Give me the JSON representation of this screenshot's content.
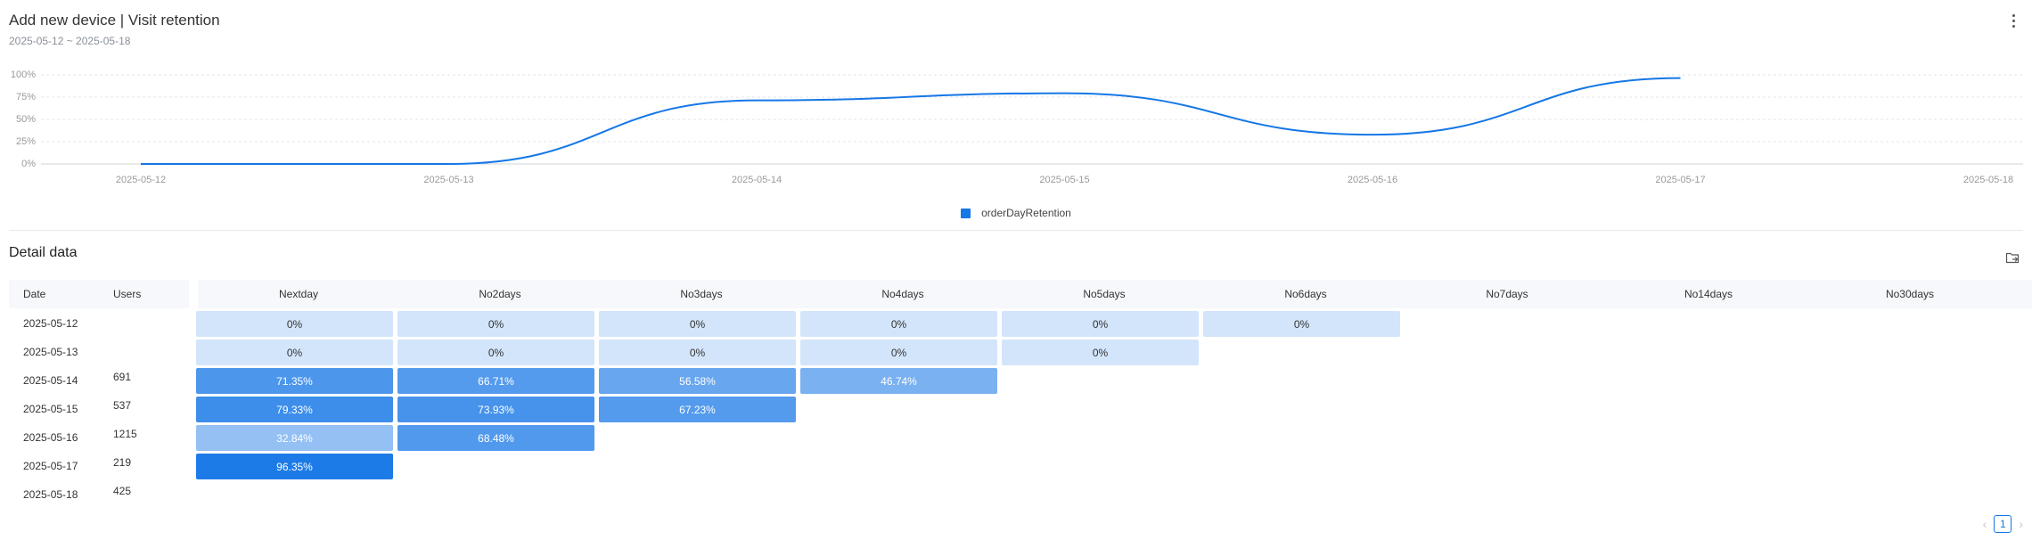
{
  "header": {
    "title": "Add new device | Visit retention",
    "date_range": "2025-05-12 ~ 2025-05-18"
  },
  "icons": {
    "more": "more-vertical-icon",
    "export": "export-folder-icon"
  },
  "colors": {
    "series": "#1677e6",
    "grid": "#e3e6ea",
    "axis": "#d0d4da"
  },
  "chart_data": {
    "type": "line",
    "x": [
      "2025-05-12",
      "2025-05-13",
      "2025-05-14",
      "2025-05-15",
      "2025-05-16",
      "2025-05-17",
      "2025-05-18"
    ],
    "series": [
      {
        "name": "orderDayRetention",
        "values": [
          0,
          0,
          71.35,
          79.33,
          32.84,
          96.35,
          null
        ]
      }
    ],
    "y_ticks": [
      "100%",
      "75%",
      "50%",
      "25%",
      "0%"
    ],
    "ylim": [
      0,
      100
    ],
    "grid": true,
    "smooth": true,
    "legend": "bottom-center"
  },
  "detail": {
    "title": "Detail data",
    "columns": {
      "date": "Date",
      "users": "Users",
      "periods": [
        "Nextday",
        "No2days",
        "No3days",
        "No4days",
        "No5days",
        "No6days",
        "No7days",
        "No14days",
        "No30days"
      ]
    },
    "rows": [
      {
        "date": "2025-05-12",
        "users": "",
        "values": [
          "0%",
          "0%",
          "0%",
          "0%",
          "0%",
          "0%"
        ],
        "numeric": [
          0,
          0,
          0,
          0,
          0,
          0
        ]
      },
      {
        "date": "2025-05-13",
        "users": "",
        "values": [
          "0%",
          "0%",
          "0%",
          "0%",
          "0%"
        ],
        "numeric": [
          0,
          0,
          0,
          0,
          0
        ]
      },
      {
        "date": "2025-05-14",
        "users": "691",
        "values": [
          "71.35%",
          "66.71%",
          "56.58%",
          "46.74%"
        ],
        "numeric": [
          71.35,
          66.71,
          56.58,
          46.74
        ]
      },
      {
        "date": "2025-05-15",
        "users": "537",
        "values": [
          "79.33%",
          "73.93%",
          "67.23%"
        ],
        "numeric": [
          79.33,
          73.93,
          67.23
        ]
      },
      {
        "date": "2025-05-16",
        "users": "1215",
        "values": [
          "32.84%",
          "68.48%"
        ],
        "numeric": [
          32.84,
          68.48
        ]
      },
      {
        "date": "2025-05-17",
        "users": "219",
        "values": [
          "96.35%"
        ],
        "numeric": [
          96.35
        ]
      },
      {
        "date": "2025-05-18",
        "users": "425",
        "values": [],
        "numeric": []
      }
    ]
  },
  "pagination": {
    "prev": "‹",
    "current": "1",
    "next": "›"
  }
}
